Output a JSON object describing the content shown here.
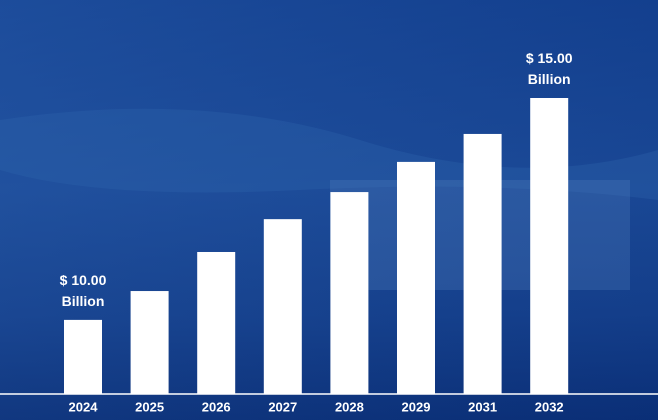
{
  "chart_data": {
    "type": "bar",
    "categories": [
      "2024",
      "2025",
      "2026",
      "2027",
      "2028",
      "2029",
      "2031",
      "2032"
    ],
    "values": [
      10,
      10.65,
      11.53,
      12.27,
      12.88,
      13.56,
      14.19,
      15
    ],
    "value_labels": [
      "$ 10.00 Billion",
      null,
      null,
      null,
      null,
      null,
      null,
      "$ 15.00 Billion"
    ],
    "color": "#ffffff",
    "ylim": [
      8.33,
      15
    ]
  }
}
